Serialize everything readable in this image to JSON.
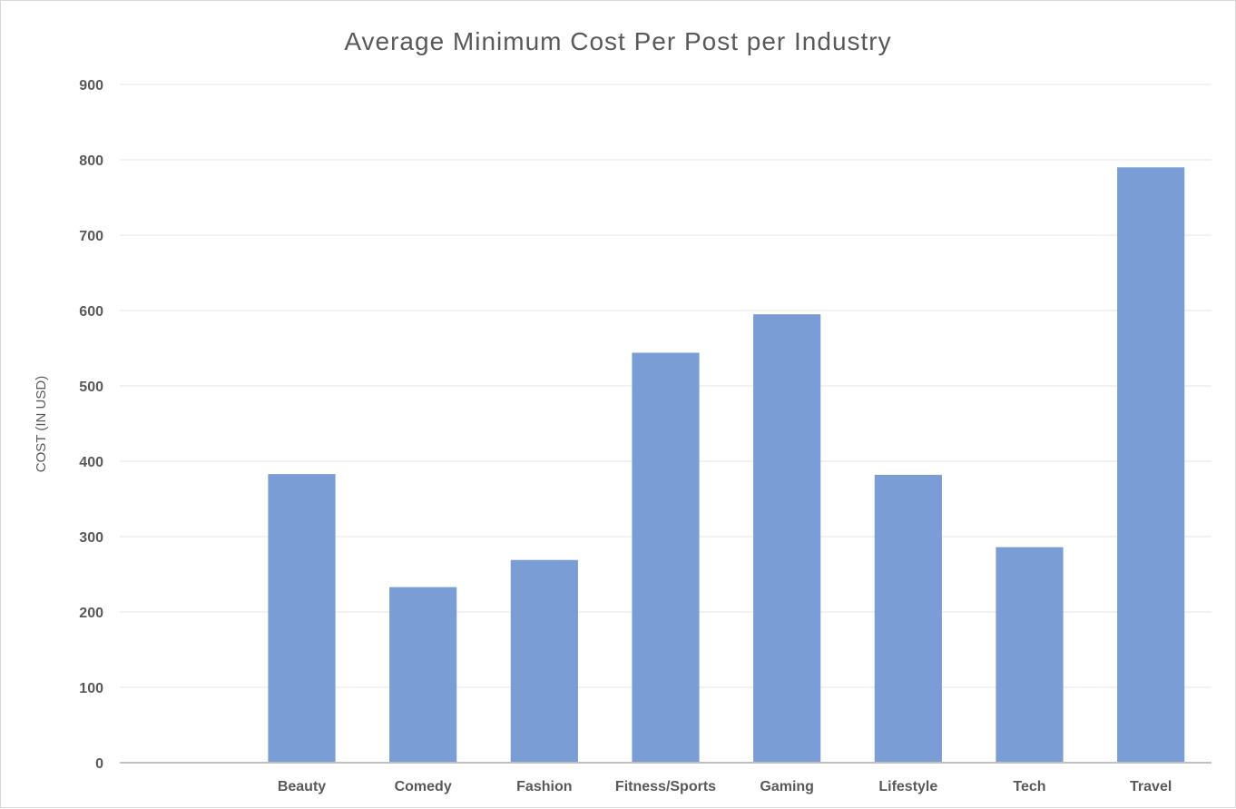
{
  "chart_data": {
    "type": "bar",
    "title": "Average Minimum  Cost Per Post per Industry",
    "xlabel": "",
    "ylabel": "COST (IN USD)",
    "categories": [
      "",
      "Beauty",
      "Comedy",
      "Fashion",
      "Fitness/Sports",
      "Gaming",
      "Lifestyle",
      "Tech",
      "Travel"
    ],
    "values": [
      null,
      383,
      233,
      269,
      544,
      595,
      382,
      286,
      790
    ],
    "ylim": [
      0,
      900
    ],
    "yticks": [
      0,
      100,
      200,
      300,
      400,
      500,
      600,
      700,
      800,
      900
    ],
    "grid": true,
    "legend": "none",
    "colors": {
      "bar": "#7b9dd5",
      "grid": "#e6e6e6",
      "axis": "#bfbfbf",
      "text": "#595959"
    }
  }
}
